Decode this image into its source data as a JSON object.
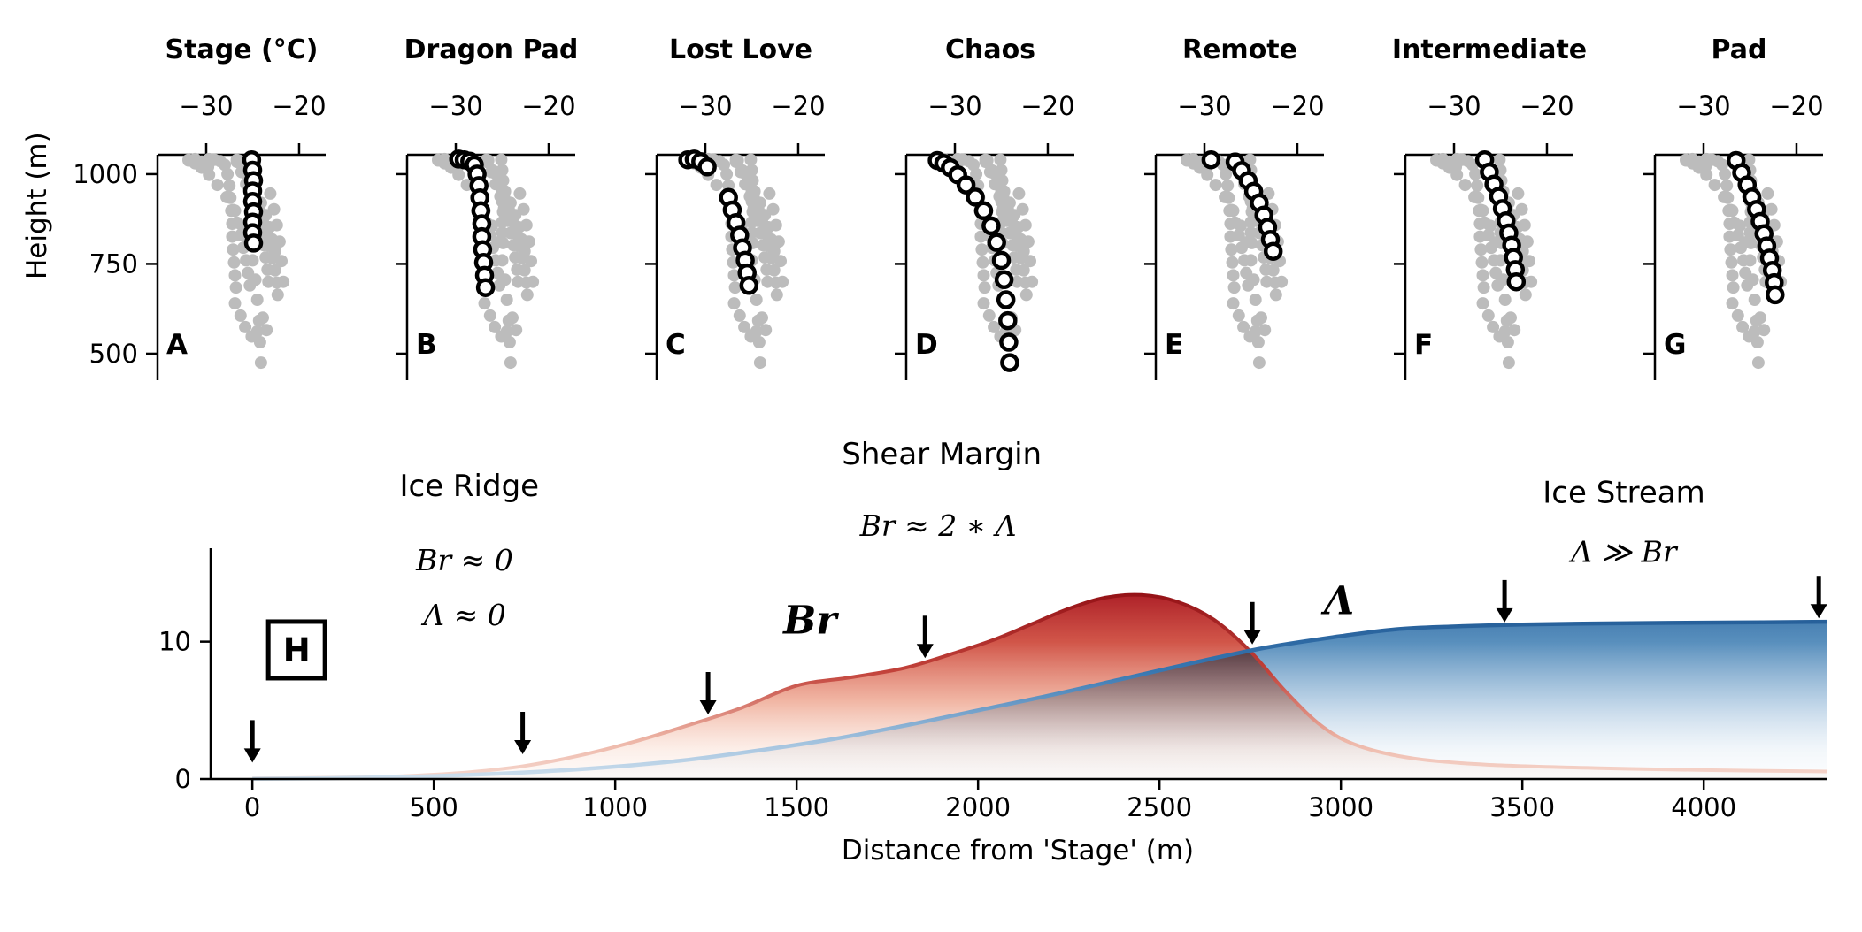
{
  "figure": {
    "background": "#ffffff"
  },
  "background_extra_points": [
    [
      -26.9,
      640
    ],
    [
      -26.3,
      606
    ],
    [
      -25.8,
      574
    ],
    [
      -25.1,
      548
    ],
    [
      -24.5,
      562
    ],
    [
      -23.9,
      600
    ],
    [
      -23.5,
      566
    ],
    [
      -23.1,
      946
    ],
    [
      -22.7,
      902
    ],
    [
      -22.4,
      858
    ],
    [
      -22.1,
      812
    ],
    [
      -21.9,
      758
    ],
    [
      -21.7,
      700
    ]
  ],
  "chart_data": [
    {
      "type": "scatter",
      "panel": "A",
      "title": "Stage (°C)",
      "ylabel": "Height (m)",
      "xlim": [
        -35.24,
        -17.14
      ],
      "ylim": [
        426,
        1054
      ],
      "x_ticks": [
        -30,
        -20
      ],
      "y_ticks": [
        1000,
        750,
        500
      ],
      "show_y_tick_labels": true,
      "highlight_points": [
        [
          -25.1,
          1040
        ],
        [
          -25.0,
          1011
        ],
        [
          -24.9,
          982
        ],
        [
          -25.0,
          953
        ],
        [
          -25.0,
          924
        ],
        [
          -24.9,
          895
        ],
        [
          -25.0,
          866
        ],
        [
          -25.0,
          837
        ],
        [
          -24.9,
          808
        ]
      ]
    },
    {
      "type": "scatter",
      "panel": "B",
      "title": "Dragon Pad",
      "xlim": [
        -35.24,
        -17.14
      ],
      "ylim": [
        426,
        1054
      ],
      "x_ticks": [
        -30,
        -20
      ],
      "y_ticks": [
        1000,
        750,
        500
      ],
      "show_y_tick_labels": false,
      "highlight_points": [
        [
          -29.7,
          1042
        ],
        [
          -29.1,
          1040
        ],
        [
          -28.5,
          1036
        ],
        [
          -28.0,
          1026
        ],
        [
          -27.7,
          1000
        ],
        [
          -27.5,
          968
        ],
        [
          -27.4,
          934
        ],
        [
          -27.3,
          898
        ],
        [
          -27.2,
          862
        ],
        [
          -27.2,
          826
        ],
        [
          -27.1,
          790
        ],
        [
          -27.0,
          754
        ],
        [
          -26.9,
          718
        ],
        [
          -26.8,
          684
        ]
      ]
    },
    {
      "type": "scatter",
      "panel": "C",
      "title": "Lost Love",
      "xlim": [
        -35.24,
        -17.14
      ],
      "ylim": [
        426,
        1054
      ],
      "x_ticks": [
        -30,
        -20
      ],
      "y_ticks": [
        1000,
        750,
        500
      ],
      "show_y_tick_labels": false,
      "highlight_points": [
        [
          -31.9,
          1040
        ],
        [
          -31.2,
          1042
        ],
        [
          -30.5,
          1035
        ],
        [
          -29.8,
          1020
        ],
        [
          -27.5,
          935
        ],
        [
          -27.1,
          900
        ],
        [
          -26.7,
          865
        ],
        [
          -26.3,
          830
        ],
        [
          -26.0,
          795
        ],
        [
          -25.7,
          760
        ],
        [
          -25.5,
          725
        ],
        [
          -25.3,
          690
        ]
      ]
    },
    {
      "type": "scatter",
      "panel": "D",
      "title": "Chaos",
      "xlim": [
        -35.24,
        -17.14
      ],
      "ylim": [
        426,
        1054
      ],
      "x_ticks": [
        -30,
        -20
      ],
      "y_ticks": [
        1000,
        750,
        500
      ],
      "show_y_tick_labels": false,
      "highlight_points": [
        [
          -31.9,
          1038
        ],
        [
          -31.2,
          1030
        ],
        [
          -30.5,
          1018
        ],
        [
          -29.7,
          998
        ],
        [
          -28.8,
          970
        ],
        [
          -27.8,
          936
        ],
        [
          -26.9,
          898
        ],
        [
          -26.1,
          856
        ],
        [
          -25.5,
          810
        ],
        [
          -25.0,
          760
        ],
        [
          -24.7,
          706
        ],
        [
          -24.5,
          650
        ],
        [
          -24.3,
          592
        ],
        [
          -24.2,
          532
        ],
        [
          -24.1,
          475
        ]
      ]
    },
    {
      "type": "scatter",
      "panel": "E",
      "title": "Remote",
      "xlim": [
        -35.24,
        -17.14
      ],
      "ylim": [
        426,
        1054
      ],
      "x_ticks": [
        -30,
        -20
      ],
      "y_ticks": [
        1000,
        750,
        500
      ],
      "show_y_tick_labels": false,
      "highlight_points": [
        [
          -29.3,
          1040
        ],
        [
          -26.7,
          1034
        ],
        [
          -26.0,
          1010
        ],
        [
          -25.3,
          982
        ],
        [
          -24.7,
          952
        ],
        [
          -24.1,
          920
        ],
        [
          -23.6,
          886
        ],
        [
          -23.2,
          852
        ],
        [
          -22.9,
          818
        ],
        [
          -22.6,
          785
        ]
      ]
    },
    {
      "type": "scatter",
      "panel": "F",
      "title": "Intermediate",
      "xlim": [
        -35.24,
        -17.14
      ],
      "ylim": [
        426,
        1054
      ],
      "x_ticks": [
        -30,
        -20
      ],
      "y_ticks": [
        1000,
        750,
        500
      ],
      "show_y_tick_labels": false,
      "highlight_points": [
        [
          -26.7,
          1040
        ],
        [
          -26.2,
          1006
        ],
        [
          -25.7,
          972
        ],
        [
          -25.2,
          938
        ],
        [
          -24.8,
          904
        ],
        [
          -24.4,
          870
        ],
        [
          -24.1,
          836
        ],
        [
          -23.8,
          802
        ],
        [
          -23.6,
          768
        ],
        [
          -23.4,
          734
        ],
        [
          -23.3,
          700
        ]
      ]
    },
    {
      "type": "scatter",
      "panel": "G",
      "title": "Pad",
      "xlim": [
        -35.24,
        -17.14
      ],
      "ylim": [
        426,
        1054
      ],
      "x_ticks": [
        -30,
        -20
      ],
      "y_ticks": [
        1000,
        750,
        500
      ],
      "show_y_tick_labels": false,
      "highlight_points": [
        [
          -26.5,
          1038
        ],
        [
          -25.9,
          1004
        ],
        [
          -25.3,
          970
        ],
        [
          -24.8,
          936
        ],
        [
          -24.3,
          902
        ],
        [
          -23.9,
          868
        ],
        [
          -23.5,
          834
        ],
        [
          -23.2,
          800
        ],
        [
          -22.9,
          766
        ],
        [
          -22.6,
          732
        ],
        [
          -22.4,
          698
        ],
        [
          -22.3,
          664
        ]
      ]
    },
    {
      "type": "area",
      "panel": "H",
      "xlabel": "Distance from 'Stage' (m)",
      "xlim": [
        -115,
        4341
      ],
      "ylim": [
        0,
        16.8
      ],
      "x_ticks": [
        0,
        500,
        1000,
        1500,
        2000,
        2500,
        3000,
        3500,
        4000
      ],
      "y_ticks": [
        0,
        10
      ],
      "series": [
        {
          "name": "Br",
          "color": "#c0392b",
          "label_color": "#cd5a50",
          "x": [
            0,
            150,
            300,
            450,
            600,
            750,
            900,
            1050,
            1200,
            1350,
            1500,
            1650,
            1800,
            1950,
            2050,
            2150,
            2250,
            2350,
            2450,
            2550,
            2650,
            2750,
            2850,
            2950,
            3050,
            3200,
            3400,
            3700,
            4000,
            4341
          ],
          "y": [
            0.05,
            0.08,
            0.12,
            0.25,
            0.5,
            0.95,
            1.7,
            2.7,
            3.9,
            5.2,
            6.8,
            7.4,
            8.1,
            9.3,
            10.2,
            11.3,
            12.4,
            13.2,
            13.4,
            12.9,
            11.6,
            9.3,
            6.3,
            3.8,
            2.4,
            1.5,
            1.05,
            0.8,
            0.65,
            0.55
          ]
        },
        {
          "name": "Λ",
          "color": "#2e6fad",
          "label_color": "#2e6fad",
          "x": [
            0,
            200,
            400,
            600,
            800,
            1000,
            1200,
            1400,
            1600,
            1800,
            2000,
            2200,
            2400,
            2600,
            2800,
            3000,
            3150,
            3300,
            3500,
            3800,
            4100,
            4341
          ],
          "y": [
            0.02,
            0.06,
            0.15,
            0.3,
            0.55,
            0.9,
            1.4,
            2.1,
            2.9,
            3.9,
            5.0,
            6.1,
            7.3,
            8.5,
            9.6,
            10.4,
            10.9,
            11.1,
            11.25,
            11.35,
            11.4,
            11.45
          ]
        }
      ],
      "station_arrows": [
        {
          "x": 0,
          "tip_y": 1.2
        },
        {
          "x": 745,
          "tip_y": 1.8
        },
        {
          "x": 1256,
          "tip_y": 4.7
        },
        {
          "x": 1854,
          "tip_y": 8.8
        },
        {
          "x": 2756,
          "tip_y": 9.8
        },
        {
          "x": 3451,
          "tip_y": 11.4
        },
        {
          "x": 4317,
          "tip_y": 11.7
        }
      ],
      "annotations": [
        {
          "name": "ice-ridge-label",
          "text": "Ice Ridge",
          "x": 598,
          "y": 20.6,
          "style": "region"
        },
        {
          "name": "ice-ridge-br-equation",
          "text": "Br ≈ 0",
          "x": 585,
          "y": 15.2,
          "style": "math"
        },
        {
          "name": "ice-ridge-lambda-equation",
          "text": "Λ ≈ 0",
          "x": 585,
          "y": 11.2,
          "style": "math"
        },
        {
          "name": "shear-margin-label",
          "text": "Shear Margin",
          "x": 1900,
          "y": 22.9,
          "style": "region"
        },
        {
          "name": "shear-margin-equation",
          "text": "Br ≈ 2 ∗ Λ",
          "x": 1890,
          "y": 17.7,
          "style": "math"
        },
        {
          "name": "ice-stream-label",
          "text": "Ice Stream",
          "x": 3780,
          "y": 20.1,
          "style": "region"
        },
        {
          "name": "ice-stream-equation",
          "text": "Λ ≫ Br",
          "x": 3780,
          "y": 15.8,
          "style": "math"
        },
        {
          "name": "br-series-label",
          "text": "Br",
          "x": 1537,
          "y": 10.6,
          "style": "series-red"
        },
        {
          "name": "lambda-series-label",
          "text": "Λ",
          "x": 2995,
          "y": 12.0,
          "style": "series-blue"
        }
      ],
      "inset_label": {
        "text": "H",
        "x": 122,
        "y": 9.4
      }
    }
  ]
}
